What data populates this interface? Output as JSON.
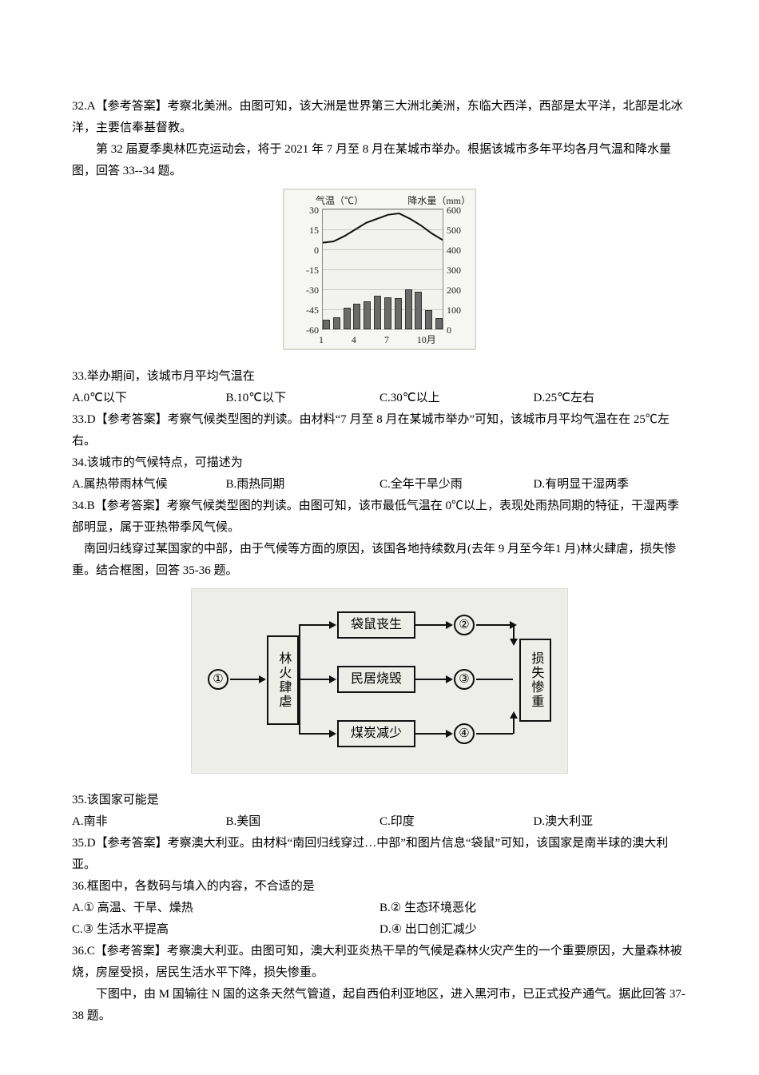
{
  "q32": {
    "answer": "32.A【参考答案】考察北美洲。由图可知，该大洲是世界第三大洲北美洲，东临大西洋，西部是太平洋，北部是北冰洋，主要信奉基督教。"
  },
  "intro33": "第 32 届夏季奥林匹克运动会，将于 2021 年 7 月至 8 月在某城市举办。根据该城市多年平均各月气温和降水量图，回答 33--34 题。",
  "climate": {
    "type": "climate-combo",
    "title_left": "气温（℃）",
    "title_right": "降水量（mm）",
    "y_left_ticks": [
      30,
      15,
      0,
      -15,
      -30,
      -45,
      -60
    ],
    "y_left_min": -60,
    "y_left_max": 30,
    "y_right_ticks": [
      600,
      500,
      400,
      300,
      200,
      100,
      0
    ],
    "y_right_min": 0,
    "y_right_max": 600,
    "x_ticks": [
      1,
      4,
      7,
      10
    ],
    "x_suffix": "月",
    "months": [
      1,
      2,
      3,
      4,
      5,
      6,
      7,
      8,
      9,
      10,
      11,
      12
    ],
    "precip": [
      50,
      60,
      110,
      130,
      140,
      170,
      160,
      155,
      200,
      190,
      95,
      55
    ],
    "temp": [
      5,
      6,
      10,
      15,
      20,
      23,
      26,
      27,
      23,
      18,
      12,
      7
    ],
    "bar_color": "#6a6a6a",
    "line_color": "#111111",
    "grid_color": "#c9c9c4",
    "background": "#f2f2ee",
    "label_fontsize": 12
  },
  "q33": {
    "stem": "33.举办期间，该城市月平均气温在",
    "opts": [
      "A.0℃以下",
      "B.10℃以下",
      "C.30℃以上",
      "D.25℃左右"
    ],
    "ans": "33.D【参考答案】考察气候类型图的判读。由材料“7 月至 8 月在某城市举办”可知，该城市月平均气温在在 25℃左右。"
  },
  "q34": {
    "stem": "34.该城市的气候特点，可描述为",
    "opts": [
      "A.属热带雨林气候",
      "B.雨热同期",
      "C.全年干旱少雨",
      "D.有明显干湿两季"
    ],
    "ans": "34.B【参考答案】考察气候类型图的判读。由图可知，该市最低气温在 0℃以上，表现处雨热同期的特征，干湿两季部明显，属于亚热带季风气候。"
  },
  "intro35": "南回归线穿过某国家的中部，由于气候等方面的原因，该国各地持续数月(去年 9 月至今年1 月)林火肆虐，损失惨重。结合框图，回答 35-36 题。",
  "flow": {
    "type": "flowchart",
    "center_label": "林火肆虐",
    "branch_labels": [
      "袋鼠丧生",
      "民居烧毁",
      "煤炭减少"
    ],
    "right_label": "损失惨重",
    "circle_labels": [
      "①",
      "②",
      "③",
      "④"
    ],
    "box_border": "#111111",
    "box_fill": "#eeeee9",
    "bg": "#ededea",
    "font_size": 16
  },
  "q35": {
    "stem": "35.该国家可能是",
    "opts": [
      "A.南非",
      "B.美国",
      "C.印度",
      "D.澳大利亚"
    ],
    "ans": "35.D【参考答案】考察澳大利亚。由材料“南回归线穿过…中部”和图片信息“袋鼠”可知，该国家是南半球的澳大利亚。"
  },
  "q36": {
    "stem": "36.框图中，各数码与填入的内容，不合适的是",
    "optsA": "A.① 高温、干旱、燥热",
    "optsB": "B.② 生态环境恶化",
    "optsC": "C.③ 生活水平提高",
    "optsD": "D.④ 出口创汇减少",
    "ans": "36.C【参考答案】考察澳大利亚。由图可知，澳大利亚炎热干旱的气候是森林火灾产生的一个重要原因，大量森林被烧，房屋受损，居民生活水平下降，损失惨重。"
  },
  "intro37": "下图中，由 M 国输往 N 国的这条天然气管道，起自西伯利亚地区，进入黑河市，已正式投产通气。据此回答 37-38 题。"
}
